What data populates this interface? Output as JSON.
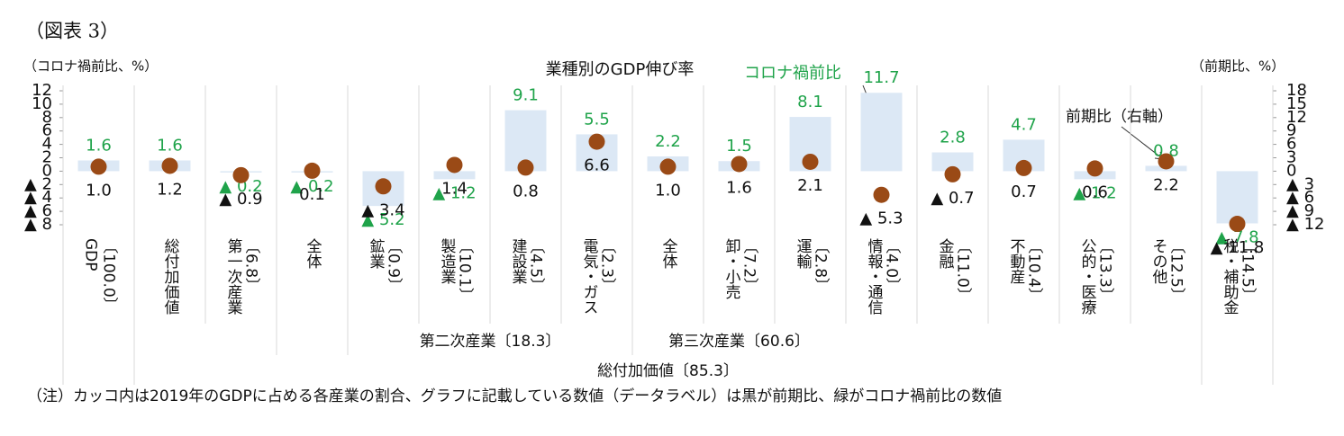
{
  "chart_data": {
    "type": "bar_dot",
    "figure_label": "（図表 3）",
    "title": "業種別のGDP伸び率",
    "y_label": "（コロナ禍前比、%）",
    "y2_label": "（前期比、%）",
    "note": "（注）カッコ内は2019年のGDPに占める各産業の割合、グラフに記載している数値（データラベル）は黒が前期比、緑がコロナ禍前比の数値",
    "categories": [
      "GDP",
      "総付加価値",
      "第一次産業",
      "全体",
      "鉱業",
      "製造業",
      "建設業",
      "電気・ガス",
      "全体",
      "卸・小売",
      "運輸",
      "情報・通信",
      "金融",
      "不動産",
      "公的・医療",
      "その他",
      "税・補助金"
    ],
    "category_shares": [
      "〔100.0〕",
      null,
      "〔6.8〕",
      null,
      "〔0.9〕",
      "〔10.1〕",
      "〔4.5〕",
      "〔2.3〕",
      null,
      "〔7.2〕",
      "〔2.8〕",
      "〔4.0〕",
      "〔11.0〕",
      "〔10.4〕",
      "〔13.3〕",
      "〔12.5〕",
      "〔14.5〕"
    ],
    "groups": [
      {
        "label": "第二次産業〔18.3〕",
        "from": "鉱業",
        "to": "電気・ガス"
      },
      {
        "label": "第三次産業〔60.6〕",
        "from": "全体",
        "to": "その他"
      },
      {
        "label": "総付加価値〔85.3〕",
        "from": "総付加価値",
        "to": "その他"
      }
    ],
    "series": [
      {
        "name": "コロナ禍前比",
        "kind": "bar",
        "color": "#dce8f5",
        "label_color": "#1fa34a",
        "values": [
          1.6,
          1.6,
          -0.2,
          -0.2,
          -5.2,
          -1.2,
          9.1,
          5.5,
          2.2,
          1.5,
          8.1,
          11.7,
          2.8,
          4.7,
          -1.2,
          0.8,
          -7.8
        ],
        "value_labels": [
          "1.6",
          "1.6",
          "▲ 0.2",
          "▲ 0.2",
          "▲ 5.2",
          "▲ 1.2",
          "9.1",
          "5.5",
          "2.2",
          "1.5",
          "8.1",
          "11.7",
          "2.8",
          "4.7",
          "▲ 1.2",
          "0.8",
          "▲ 7.8"
        ]
      },
      {
        "name": "前期比（右軸）",
        "kind": "dot",
        "axis": "y2",
        "color": "#9a4a16",
        "label_color": "#111111",
        "values": [
          1.0,
          1.2,
          -0.9,
          0.1,
          -3.4,
          1.4,
          0.8,
          6.6,
          1.0,
          1.6,
          2.1,
          -5.3,
          -0.7,
          0.7,
          0.6,
          2.2,
          -11.8
        ],
        "value_labels": [
          "1.0",
          "1.2",
          "▲ 0.9",
          "0.1",
          "▲ 3.4",
          "1.4",
          "0.8",
          "6.6",
          "1.0",
          "1.6",
          "2.1",
          "▲ 5.3",
          "▲ 0.7",
          "0.7",
          "0.6",
          "2.2",
          "▲ 11.8"
        ]
      }
    ],
    "ylim": [
      -8,
      12
    ],
    "yticks": [
      {
        "value": -8,
        "label": "▲ 8"
      },
      {
        "value": -6,
        "label": "▲ 6"
      },
      {
        "value": -4,
        "label": "▲ 4"
      },
      {
        "value": -2,
        "label": "▲ 2"
      },
      0,
      2,
      4,
      6,
      8,
      10,
      12
    ],
    "y2lim": [
      -12,
      18
    ],
    "y2ticks": [
      {
        "value": -12,
        "label": "▲ 12"
      },
      {
        "value": -9,
        "label": "▲ 9"
      },
      {
        "value": -6,
        "label": "▲ 6"
      },
      {
        "value": -3,
        "label": "▲ 3"
      },
      0,
      3,
      6,
      9,
      12,
      15,
      18
    ],
    "grid": false
  }
}
